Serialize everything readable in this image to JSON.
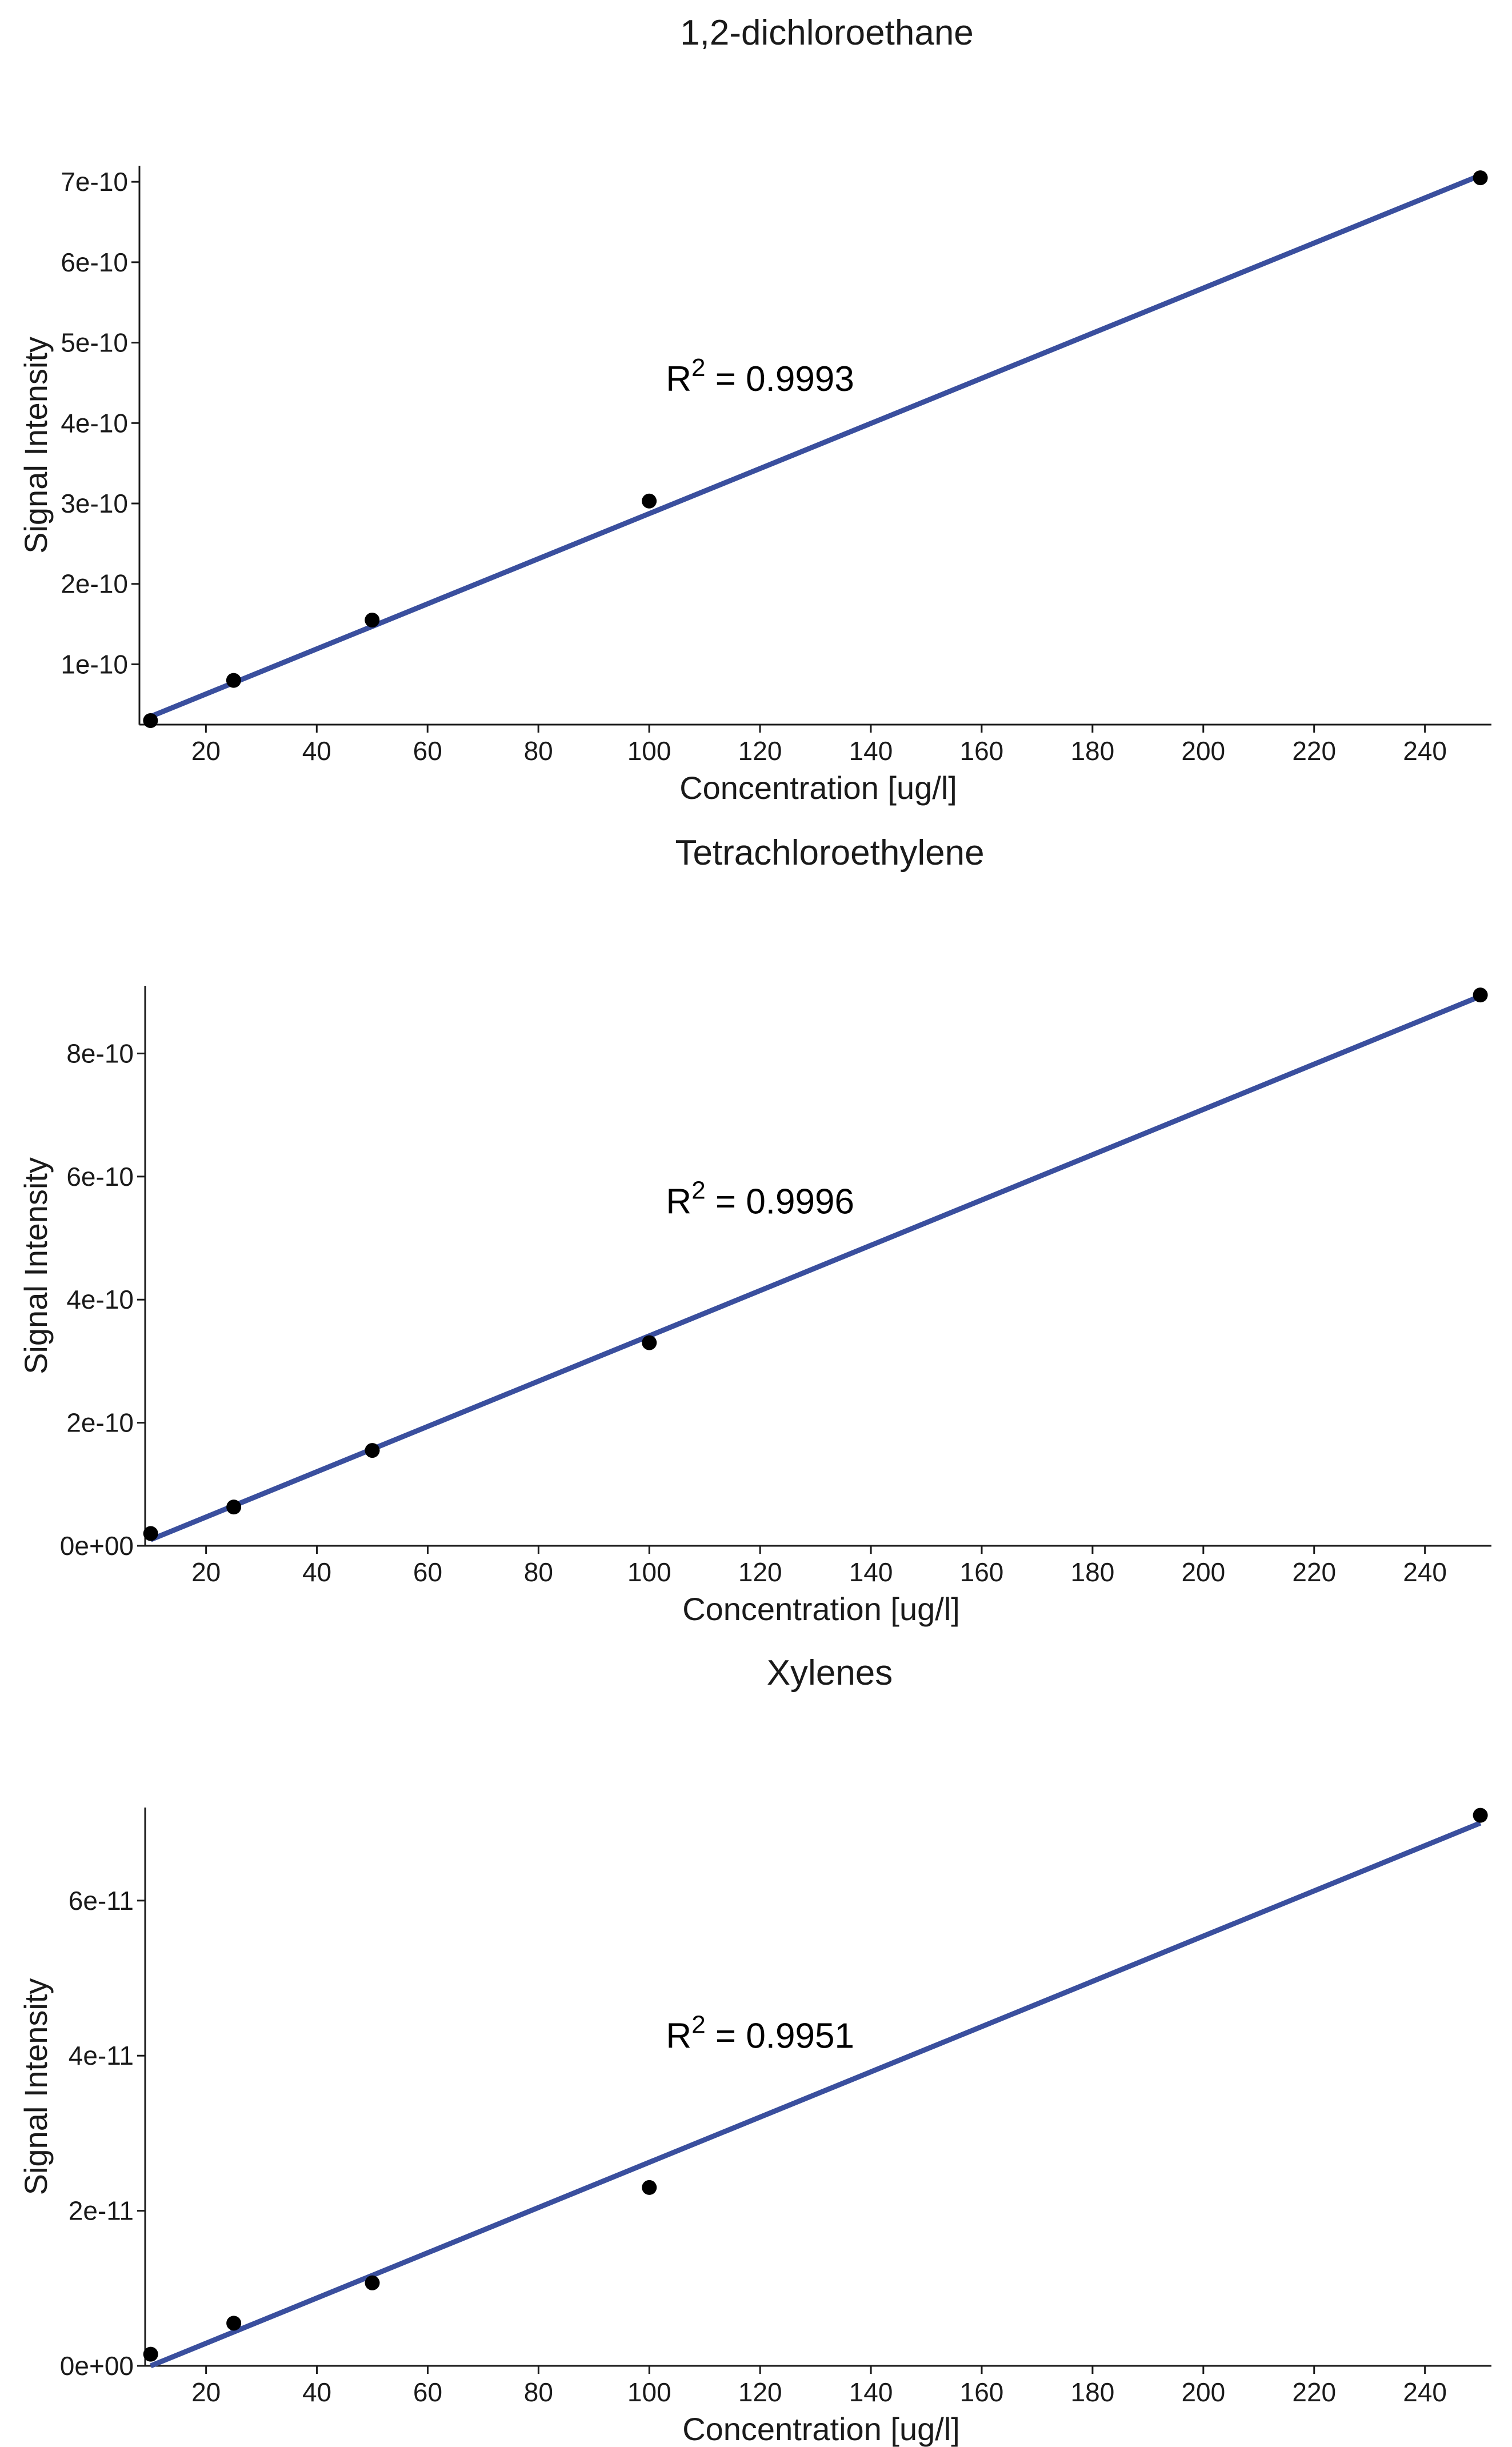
{
  "chart_data": [
    {
      "type": "scatter",
      "title": "1,2-dichloroethane",
      "xlabel": "Concentration [ug/l]",
      "ylabel": "Signal Intensity",
      "xlim": [
        8,
        252
      ],
      "ylim": [
        2.5e-11,
        7.2e-10
      ],
      "xticks": [
        20,
        40,
        60,
        80,
        100,
        120,
        140,
        160,
        180,
        200,
        220,
        240
      ],
      "yticks": [
        1e-10,
        2e-10,
        3e-10,
        4e-10,
        5e-10,
        6e-10,
        7e-10
      ],
      "ytick_labels": [
        "1e-10",
        "2e-10",
        "3e-10",
        "4e-10",
        "5e-10",
        "6e-10",
        "7e-10"
      ],
      "points": {
        "x": [
          10,
          25,
          50,
          100,
          250
        ],
        "y": [
          3e-11,
          8e-11,
          1.55e-10,
          3.03e-10,
          7.05e-10
        ]
      },
      "fit": {
        "x": [
          10,
          250
        ],
        "y": [
          3.5e-11,
          7.08e-10
        ]
      },
      "r2_label": "R",
      "r2_sup": "2",
      "r2_value": " = 0.9993",
      "r2_pos": [
        120,
        4.4e-10
      ],
      "grid": false
    },
    {
      "type": "scatter",
      "title": "Tetrachloroethylene",
      "xlabel": "Concentration [ug/l]",
      "ylabel": "Signal Intensity",
      "xlim": [
        9,
        252
      ],
      "ylim": [
        0,
        9.1e-10
      ],
      "xticks": [
        20,
        40,
        60,
        80,
        100,
        120,
        140,
        160,
        180,
        200,
        220,
        240
      ],
      "yticks": [
        0,
        2e-10,
        4e-10,
        6e-10,
        8e-10
      ],
      "ytick_labels": [
        "0e+00",
        "2e-10",
        "4e-10",
        "6e-10",
        "8e-10"
      ],
      "points": {
        "x": [
          10,
          25,
          50,
          100,
          250
        ],
        "y": [
          2e-11,
          6.3e-11,
          1.55e-10,
          3.3e-10,
          8.95e-10
        ]
      },
      "fit": {
        "x": [
          10,
          250
        ],
        "y": [
          1e-11,
          8.93e-10
        ]
      },
      "r2_label": "R",
      "r2_sup": "2",
      "r2_value": " = 0.9996",
      "r2_pos": [
        120,
        5.4e-10
      ],
      "grid": false
    },
    {
      "type": "scatter",
      "title": "Xylenes",
      "xlabel": "Concentration [ug/l]",
      "ylabel": "Signal Intensity",
      "xlim": [
        9,
        252
      ],
      "ylim": [
        0,
        7.2e-11
      ],
      "xticks": [
        20,
        40,
        60,
        80,
        100,
        120,
        140,
        160,
        180,
        200,
        220,
        240
      ],
      "yticks": [
        0,
        2e-11,
        4e-11,
        6e-11
      ],
      "ytick_labels": [
        "0e+00",
        "2e-11",
        "4e-11",
        "6e-11"
      ],
      "points": {
        "x": [
          10,
          25,
          50,
          100,
          250
        ],
        "y": [
          1.5e-12,
          5.5e-12,
          1.07e-11,
          2.3e-11,
          7.1e-11
        ]
      },
      "fit": {
        "x": [
          10,
          250
        ],
        "y": [
          0,
          7e-11
        ]
      },
      "r2_label": "R",
      "r2_sup": "2",
      "r2_value": " = 0.9951",
      "r2_pos": [
        120,
        4.1e-11
      ],
      "grid": false
    }
  ],
  "colors": {
    "fit_line": "#3a4f9e",
    "points": "#000000",
    "axis": "#1a1a1a",
    "text": "#1a1a1a"
  }
}
